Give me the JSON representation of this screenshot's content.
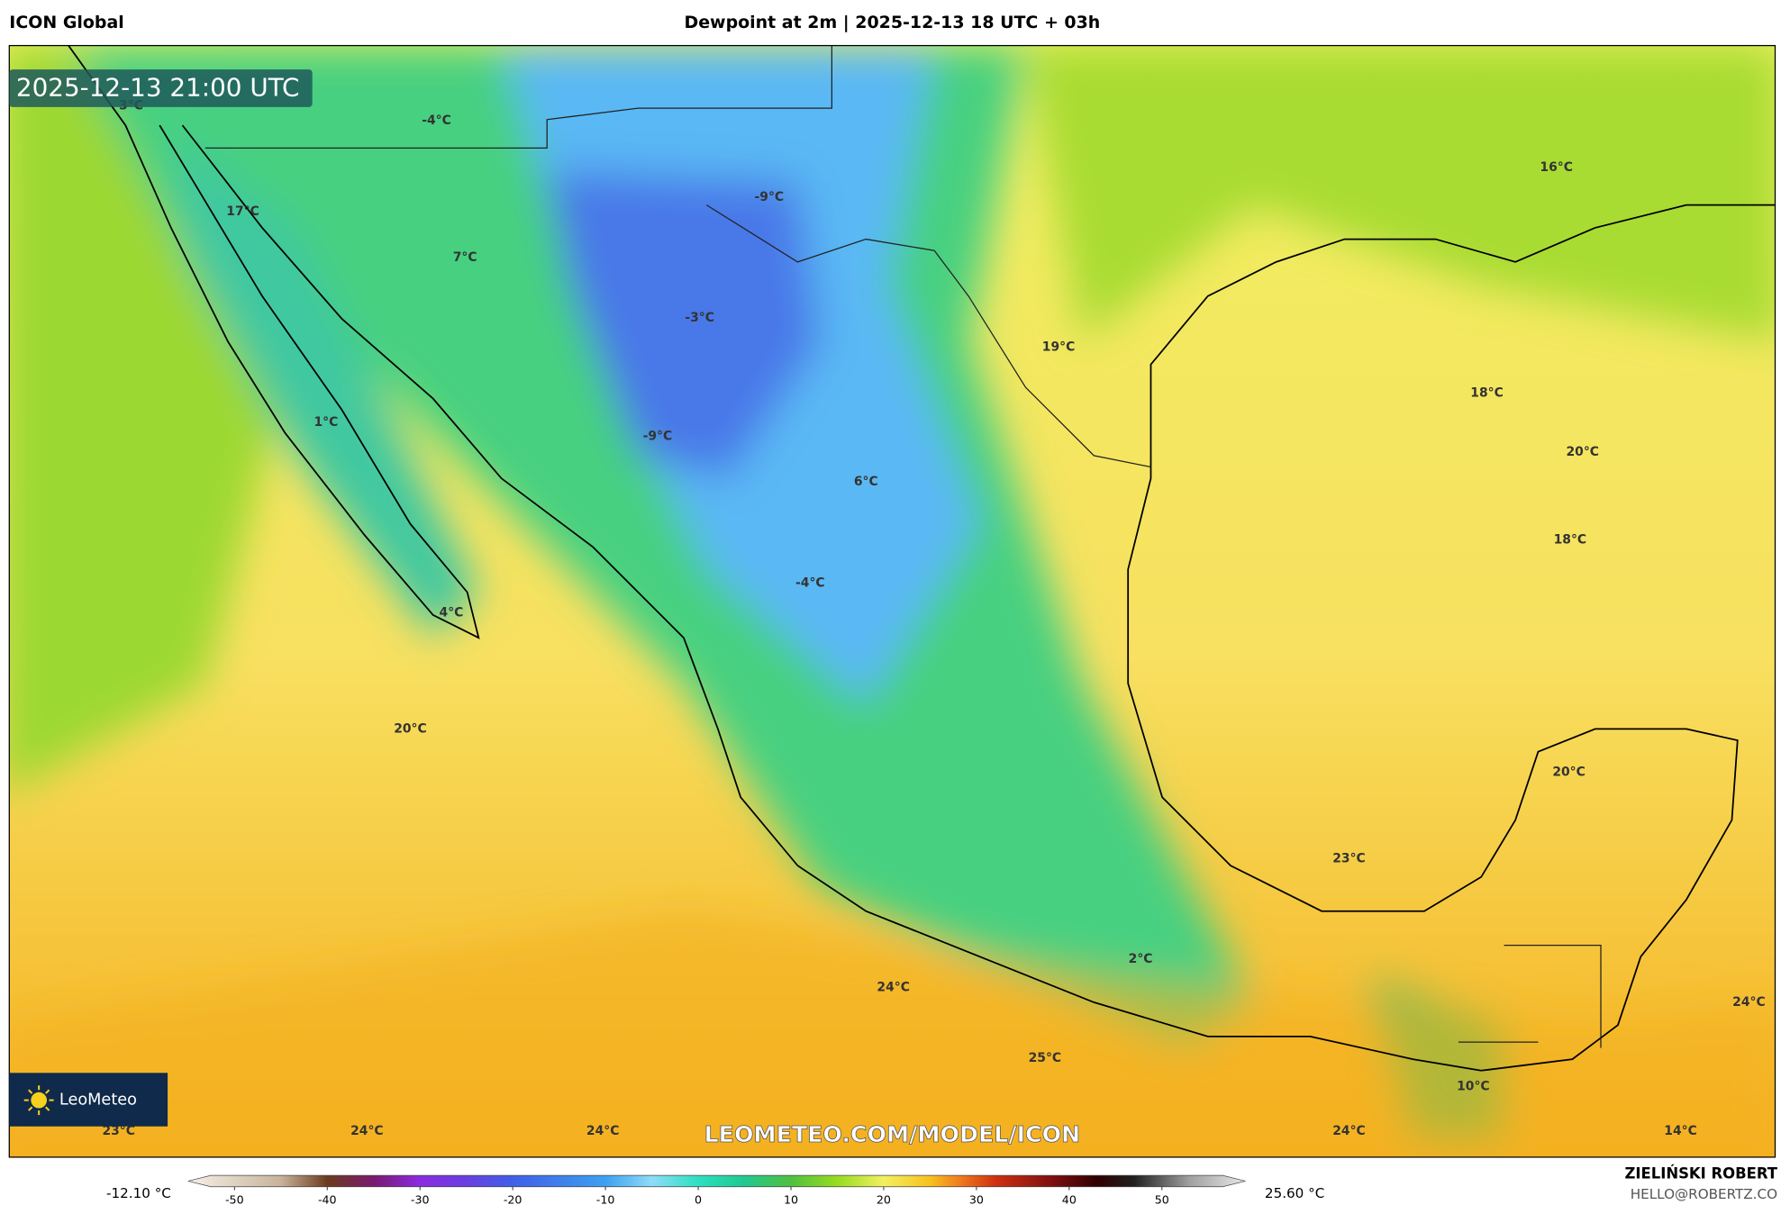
{
  "header": {
    "model": "ICON Global",
    "title": "Dewpoint at 2m | 2025-12-13 18 UTC + 03h"
  },
  "map": {
    "timestamp": "2025-12-13 21:00 UTC",
    "watermark": "LEOMETEO.COM/MODEL/ICON",
    "logo": "LeoMeteo",
    "labels": [
      "3°C",
      "-4°C",
      "-9°C",
      "17°C",
      "7°C",
      "-3°C",
      "19°C",
      "16°C",
      "18°C",
      "1°C",
      "-9°C",
      "20°C",
      "6°C",
      "18°C",
      "-4°C",
      "4°C",
      "20°C",
      "20°C",
      "23°C",
      "2°C",
      "24°C",
      "24°C",
      "25°C",
      "10°C",
      "23°C",
      "24°C",
      "24°C",
      "24°C",
      "14°C"
    ]
  },
  "colorbar": {
    "min_label": "-12.10 °C",
    "max_label": "25.60 °C",
    "range": [
      -55,
      59
    ],
    "ticks": [
      -50,
      -40,
      -30,
      -20,
      -10,
      0,
      10,
      20,
      30,
      40,
      50
    ],
    "stops": [
      {
        "value": -55,
        "color": "#f5f0e8"
      },
      {
        "value": -45,
        "color": "#c8b39a"
      },
      {
        "value": -40,
        "color": "#6b3a1e"
      },
      {
        "value": -35,
        "color": "#7a1a6e"
      },
      {
        "value": -30,
        "color": "#8a2be2"
      },
      {
        "value": -25,
        "color": "#6a3fe0"
      },
      {
        "value": -20,
        "color": "#3f5fe8"
      },
      {
        "value": -10,
        "color": "#3ea0f0"
      },
      {
        "value": -5,
        "color": "#8fdcf8"
      },
      {
        "value": 0,
        "color": "#2ee0c0"
      },
      {
        "value": 5,
        "color": "#20c890"
      },
      {
        "value": 10,
        "color": "#50c040"
      },
      {
        "value": 15,
        "color": "#98dc20"
      },
      {
        "value": 20,
        "color": "#f2f060"
      },
      {
        "value": 25,
        "color": "#f8c020"
      },
      {
        "value": 28,
        "color": "#f08020"
      },
      {
        "value": 32,
        "color": "#d03010"
      },
      {
        "value": 38,
        "color": "#801010"
      },
      {
        "value": 43,
        "color": "#300000"
      },
      {
        "value": 47,
        "color": "#202020"
      },
      {
        "value": 53,
        "color": "#a0a0a0"
      },
      {
        "value": 59,
        "color": "#e8e8e8"
      }
    ]
  },
  "credits": {
    "author": "ZIELIŃSKI ROBERT",
    "contact": "HELLO@ROBERTZ.CO"
  }
}
